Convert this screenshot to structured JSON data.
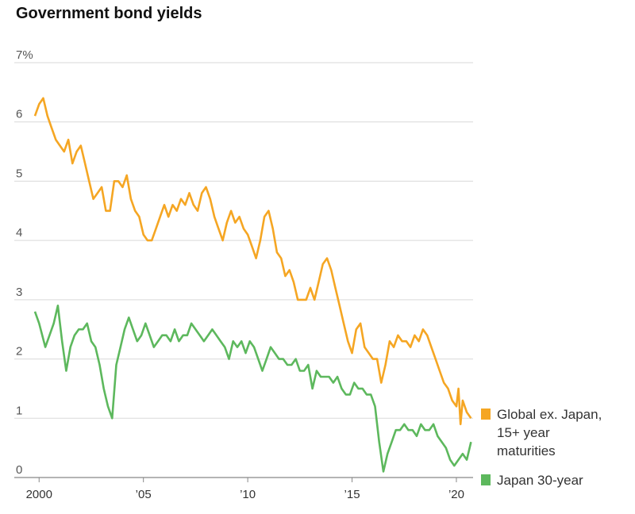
{
  "chart_data": {
    "type": "line",
    "title": "Government bond yields",
    "xlabel": "",
    "ylabel": "",
    "xlim": [
      1999.8,
      2020.8
    ],
    "ylim": [
      0,
      7
    ],
    "y_ticks": [
      {
        "value": 0,
        "label": "0"
      },
      {
        "value": 1,
        "label": "1"
      },
      {
        "value": 2,
        "label": "2"
      },
      {
        "value": 3,
        "label": "3"
      },
      {
        "value": 4,
        "label": "4"
      },
      {
        "value": 5,
        "label": "5"
      },
      {
        "value": 6,
        "label": "6"
      },
      {
        "value": 7,
        "label": "7%"
      }
    ],
    "x_ticks": [
      {
        "value": 2000,
        "label": "2000"
      },
      {
        "value": 2005,
        "label": "’05"
      },
      {
        "value": 2010,
        "label": "’10"
      },
      {
        "value": 2015,
        "label": "’15"
      },
      {
        "value": 2020,
        "label": "’20"
      }
    ],
    "series": [
      {
        "name": "Global ex. Japan, 15+ year maturities",
        "legend_lines": [
          "Global ex. Japan,",
          "15+ year",
          "maturities"
        ],
        "color": "#f5a623",
        "x": [
          1999.8,
          2000.0,
          2000.2,
          2000.4,
          2000.6,
          2000.8,
          2001.0,
          2001.2,
          2001.4,
          2001.6,
          2001.8,
          2002.0,
          2002.2,
          2002.4,
          2002.6,
          2002.8,
          2003.0,
          2003.2,
          2003.4,
          2003.6,
          2003.8,
          2004.0,
          2004.2,
          2004.4,
          2004.6,
          2004.8,
          2005.0,
          2005.2,
          2005.4,
          2005.6,
          2005.8,
          2006.0,
          2006.2,
          2006.4,
          2006.6,
          2006.8,
          2007.0,
          2007.2,
          2007.4,
          2007.6,
          2007.8,
          2008.0,
          2008.2,
          2008.4,
          2008.6,
          2008.8,
          2009.0,
          2009.2,
          2009.4,
          2009.6,
          2009.8,
          2010.0,
          2010.2,
          2010.4,
          2010.6,
          2010.8,
          2011.0,
          2011.2,
          2011.4,
          2011.6,
          2011.8,
          2012.0,
          2012.2,
          2012.4,
          2012.6,
          2012.8,
          2013.0,
          2013.2,
          2013.4,
          2013.6,
          2013.8,
          2014.0,
          2014.2,
          2014.4,
          2014.6,
          2014.8,
          2015.0,
          2015.2,
          2015.4,
          2015.6,
          2015.8,
          2016.0,
          2016.2,
          2016.4,
          2016.6,
          2016.8,
          2017.0,
          2017.2,
          2017.4,
          2017.6,
          2017.8,
          2018.0,
          2018.2,
          2018.4,
          2018.6,
          2018.8,
          2019.0,
          2019.2,
          2019.4,
          2019.6,
          2019.8,
          2020.0,
          2020.1,
          2020.2,
          2020.3,
          2020.5,
          2020.7
        ],
        "values": [
          6.1,
          6.3,
          6.4,
          6.1,
          5.9,
          5.7,
          5.6,
          5.5,
          5.7,
          5.3,
          5.5,
          5.6,
          5.3,
          5.0,
          4.7,
          4.8,
          4.9,
          4.5,
          4.5,
          5.0,
          5.0,
          4.9,
          5.1,
          4.7,
          4.5,
          4.4,
          4.1,
          4.0,
          4.0,
          4.2,
          4.4,
          4.6,
          4.4,
          4.6,
          4.5,
          4.7,
          4.6,
          4.8,
          4.6,
          4.5,
          4.8,
          4.9,
          4.7,
          4.4,
          4.2,
          4.0,
          4.3,
          4.5,
          4.3,
          4.4,
          4.2,
          4.1,
          3.9,
          3.7,
          4.0,
          4.4,
          4.5,
          4.2,
          3.8,
          3.7,
          3.4,
          3.5,
          3.3,
          3.0,
          3.0,
          3.0,
          3.2,
          3.0,
          3.3,
          3.6,
          3.7,
          3.5,
          3.2,
          2.9,
          2.6,
          2.3,
          2.1,
          2.5,
          2.6,
          2.2,
          2.1,
          2.0,
          2.0,
          1.6,
          1.9,
          2.3,
          2.2,
          2.4,
          2.3,
          2.3,
          2.2,
          2.4,
          2.3,
          2.5,
          2.4,
          2.2,
          2.0,
          1.8,
          1.6,
          1.5,
          1.3,
          1.2,
          1.5,
          0.9,
          1.3,
          1.1,
          1.0
        ]
      },
      {
        "name": "Japan 30-year",
        "legend_lines": [
          "Japan 30-year"
        ],
        "color": "#5db85d",
        "x": [
          1999.8,
          2000.0,
          2000.3,
          2000.5,
          2000.7,
          2000.9,
          2001.1,
          2001.3,
          2001.5,
          2001.7,
          2001.9,
          2002.1,
          2002.3,
          2002.5,
          2002.7,
          2002.9,
          2003.1,
          2003.3,
          2003.5,
          2003.7,
          2003.9,
          2004.1,
          2004.3,
          2004.5,
          2004.7,
          2004.9,
          2005.1,
          2005.3,
          2005.5,
          2005.7,
          2005.9,
          2006.1,
          2006.3,
          2006.5,
          2006.7,
          2006.9,
          2007.1,
          2007.3,
          2007.5,
          2007.7,
          2007.9,
          2008.1,
          2008.3,
          2008.5,
          2008.7,
          2008.9,
          2009.1,
          2009.3,
          2009.5,
          2009.7,
          2009.9,
          2010.1,
          2010.3,
          2010.5,
          2010.7,
          2010.9,
          2011.1,
          2011.3,
          2011.5,
          2011.7,
          2011.9,
          2012.1,
          2012.3,
          2012.5,
          2012.7,
          2012.9,
          2013.1,
          2013.3,
          2013.5,
          2013.7,
          2013.9,
          2014.1,
          2014.3,
          2014.5,
          2014.7,
          2014.9,
          2015.1,
          2015.3,
          2015.5,
          2015.7,
          2015.9,
          2016.1,
          2016.3,
          2016.5,
          2016.7,
          2016.9,
          2017.1,
          2017.3,
          2017.5,
          2017.7,
          2017.9,
          2018.1,
          2018.3,
          2018.5,
          2018.7,
          2018.9,
          2019.1,
          2019.3,
          2019.5,
          2019.7,
          2019.9,
          2020.1,
          2020.3,
          2020.5,
          2020.7
        ],
        "values": [
          2.8,
          2.6,
          2.2,
          2.4,
          2.6,
          2.9,
          2.3,
          1.8,
          2.2,
          2.4,
          2.5,
          2.5,
          2.6,
          2.3,
          2.2,
          1.9,
          1.5,
          1.2,
          1.0,
          1.9,
          2.2,
          2.5,
          2.7,
          2.5,
          2.3,
          2.4,
          2.6,
          2.4,
          2.2,
          2.3,
          2.4,
          2.4,
          2.3,
          2.5,
          2.3,
          2.4,
          2.4,
          2.6,
          2.5,
          2.4,
          2.3,
          2.4,
          2.5,
          2.4,
          2.3,
          2.2,
          2.0,
          2.3,
          2.2,
          2.3,
          2.1,
          2.3,
          2.2,
          2.0,
          1.8,
          2.0,
          2.2,
          2.1,
          2.0,
          2.0,
          1.9,
          1.9,
          2.0,
          1.8,
          1.8,
          1.9,
          1.5,
          1.8,
          1.7,
          1.7,
          1.7,
          1.6,
          1.7,
          1.5,
          1.4,
          1.4,
          1.6,
          1.5,
          1.5,
          1.4,
          1.4,
          1.2,
          0.6,
          0.1,
          0.4,
          0.6,
          0.8,
          0.8,
          0.9,
          0.8,
          0.8,
          0.7,
          0.9,
          0.8,
          0.8,
          0.9,
          0.7,
          0.6,
          0.5,
          0.3,
          0.2,
          0.3,
          0.4,
          0.3,
          0.6
        ]
      }
    ]
  }
}
